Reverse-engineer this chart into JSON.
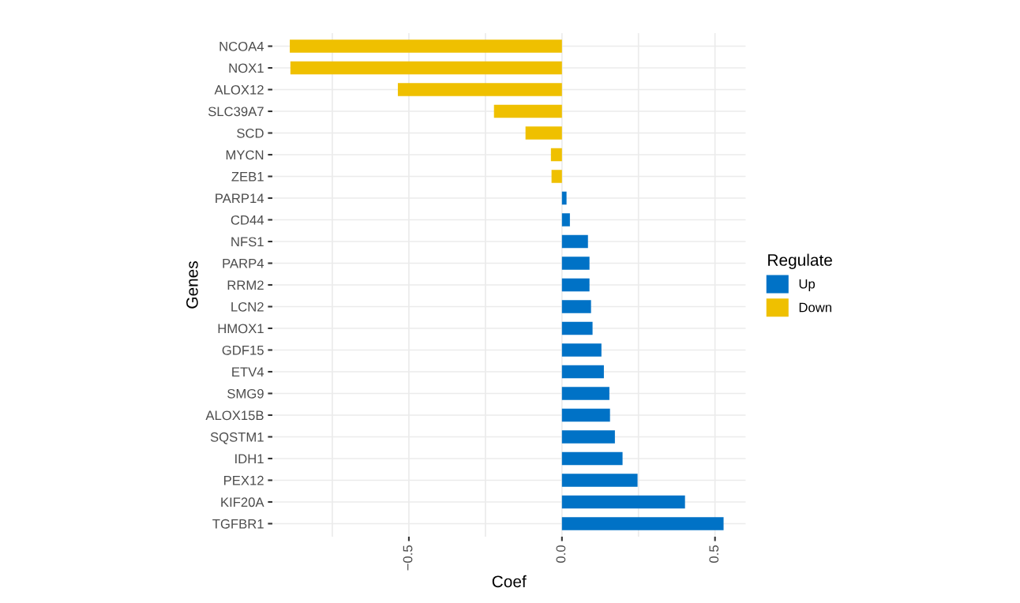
{
  "chart_data": {
    "type": "bar",
    "orientation": "horizontal",
    "xlabel": "Coef",
    "ylabel": "Genes",
    "legend_title": "Regulate",
    "legend": "right",
    "categories": [
      "NCOA4",
      "NOX1",
      "ALOX12",
      "SLC39A7",
      "SCD",
      "MYCN",
      "ZEB1",
      "PARP14",
      "CD44",
      "NFS1",
      "PARP4",
      "RRM2",
      "LCN2",
      "HMOX1",
      "GDF15",
      "ETV4",
      "SMG9",
      "ALOX15B",
      "SQSTM1",
      "IDH1",
      "PEX12",
      "KIF20A",
      "TGFBR1"
    ],
    "series": [
      {
        "name": "Up",
        "color": "#0072c6",
        "values": [
          null,
          null,
          null,
          null,
          null,
          null,
          null,
          0.015,
          0.026,
          0.085,
          0.09,
          0.09,
          0.095,
          0.1,
          0.129,
          0.137,
          0.155,
          0.157,
          0.173,
          0.198,
          0.247,
          0.402,
          0.528
        ]
      },
      {
        "name": "Down",
        "color": "#efc000",
        "values": [
          -0.889,
          -0.887,
          -0.536,
          -0.222,
          -0.119,
          -0.036,
          -0.034,
          null,
          null,
          null,
          null,
          null,
          null,
          null,
          null,
          null,
          null,
          null,
          null,
          null,
          null,
          null,
          null
        ]
      }
    ],
    "xlim": [
      -0.946,
      0.6
    ],
    "xticks": [
      {
        "value": -0.75,
        "label": null
      },
      {
        "value": -0.5,
        "label": "−0.5"
      },
      {
        "value": -0.25,
        "label": null
      },
      {
        "value": 0.0,
        "label": "0.0"
      },
      {
        "value": 0.25,
        "label": null
      },
      {
        "value": 0.5,
        "label": "0.5"
      }
    ],
    "grid": true
  }
}
